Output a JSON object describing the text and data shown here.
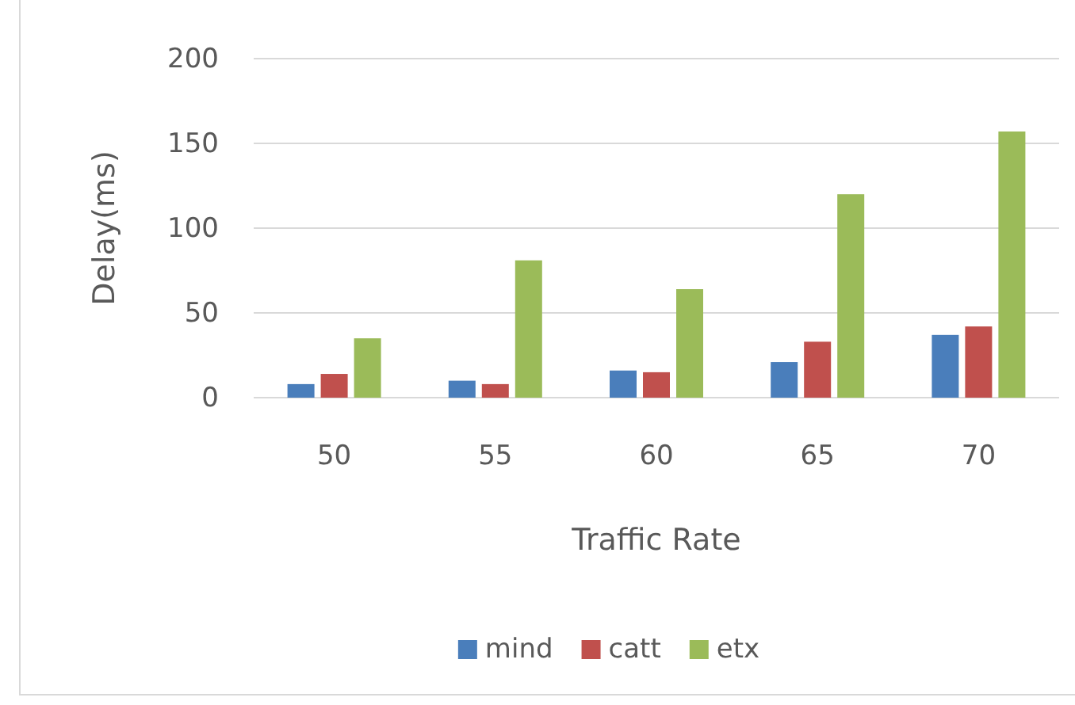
{
  "chart_data": {
    "type": "bar",
    "xlabel": "Traffic Rate",
    "ylabel": "Delay(ms)",
    "categories": [
      "50",
      "55",
      "60",
      "65",
      "70"
    ],
    "series": [
      {
        "name": "mind",
        "color": "#4a7ebb",
        "values": [
          8,
          10,
          16,
          21,
          37
        ]
      },
      {
        "name": "catt",
        "color": "#c0504d",
        "values": [
          14,
          8,
          15,
          33,
          42
        ]
      },
      {
        "name": "etx",
        "color": "#9bbb59",
        "values": [
          35,
          81,
          64,
          120,
          157
        ]
      }
    ],
    "ylim": [
      0,
      200
    ],
    "yticks": [
      0,
      50,
      100,
      150,
      200
    ],
    "grid": "y",
    "legend": "bottom"
  }
}
